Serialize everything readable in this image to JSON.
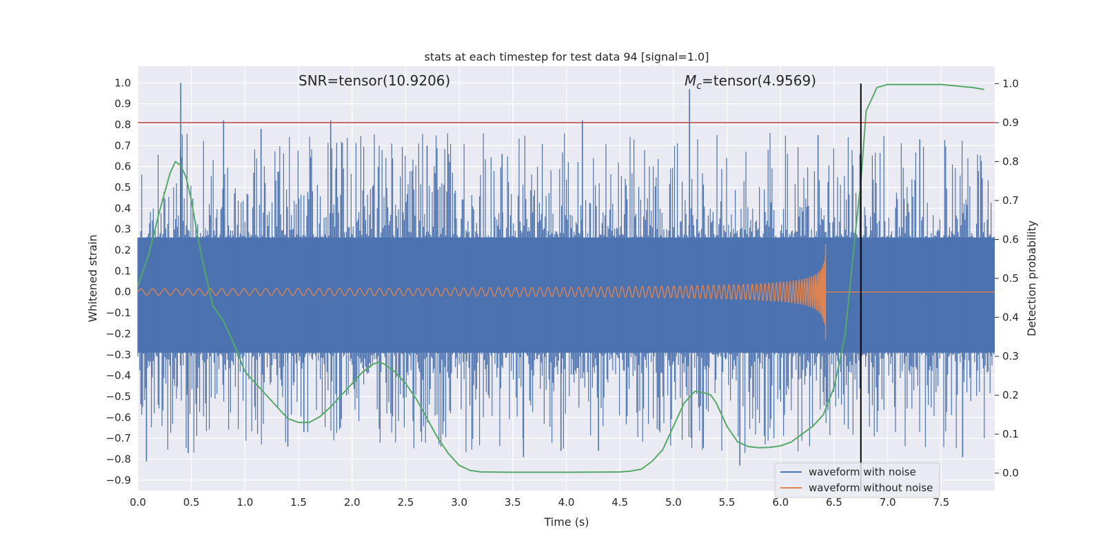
{
  "chart_data": {
    "type": "line",
    "title": "stats at each timestep for test data 94 [signal=1.0]",
    "xlabel": "Time (s)",
    "ylabel": "Whitened strain",
    "y2label": "Detection probability",
    "xlim": [
      0.0,
      8.0
    ],
    "ylim": [
      -0.95,
      1.08
    ],
    "y2lim": [
      -0.045,
      1.045
    ],
    "x_ticks": [
      "0.0",
      "0.5",
      "1.0",
      "1.5",
      "2.0",
      "2.5",
      "3.0",
      "3.5",
      "4.0",
      "4.5",
      "5.0",
      "5.5",
      "6.0",
      "6.5",
      "7.0",
      "7.5"
    ],
    "y_ticks": [
      "1.0",
      "0.9",
      "0.8",
      "0.7",
      "0.6",
      "0.5",
      "0.4",
      "0.3",
      "0.2",
      "0.1",
      "0.0",
      "−0.1",
      "−0.2",
      "−0.3",
      "−0.4",
      "−0.5",
      "−0.6",
      "−0.7",
      "−0.8",
      "−0.9"
    ],
    "y2_ticks": [
      "1.0",
      "0.9",
      "0.8",
      "0.7",
      "0.6",
      "0.5",
      "0.4",
      "0.3",
      "0.2",
      "0.1",
      "0.0"
    ],
    "grid": true,
    "legend_position": "lower-right",
    "annotations": {
      "snr": "SNR=tensor(10.9206)",
      "mc_symbol": "M",
      "mc_subscript": "c",
      "mc_value": "=tensor(4.9569)"
    },
    "threshold_y2": 0.9,
    "event_time": 6.75,
    "series": [
      {
        "name": "waveform with noise",
        "color": "#4c72b0",
        "axis": "left",
        "envelope": [
          0.26,
          -0.29
        ],
        "peaks": [
          [
            0.4,
            1.0
          ],
          [
            0.8,
            0.82
          ],
          [
            1.15,
            0.78
          ],
          [
            1.8,
            0.82
          ],
          [
            2.7,
            0.7
          ],
          [
            3.4,
            0.66
          ],
          [
            4.15,
            0.82
          ],
          [
            5.15,
            0.97
          ],
          [
            6.35,
            0.75
          ],
          [
            7.3,
            0.73
          ],
          [
            0.08,
            -0.81
          ],
          [
            0.47,
            -0.77
          ],
          [
            1.4,
            -0.74
          ],
          [
            1.55,
            -0.67
          ],
          [
            3.6,
            -0.79
          ],
          [
            3.95,
            -0.76
          ],
          [
            4.3,
            -0.76
          ],
          [
            5.62,
            -0.83
          ],
          [
            7.7,
            -0.79
          ]
        ]
      },
      {
        "name": "waveform without noise",
        "color": "#dd8452",
        "axis": "left",
        "amplitude_start": 0.015,
        "amplitude_at_merger": 0.23,
        "merger_time": 6.42
      },
      {
        "name": "detection probability",
        "color": "#55a868",
        "axis": "right",
        "x": [
          0.0,
          0.1,
          0.2,
          0.3,
          0.35,
          0.4,
          0.45,
          0.5,
          0.55,
          0.6,
          0.7,
          0.8,
          0.9,
          1.0,
          1.2,
          1.4,
          1.5,
          1.6,
          1.7,
          1.8,
          1.9,
          2.0,
          2.1,
          2.2,
          2.25,
          2.3,
          2.4,
          2.5,
          2.6,
          2.7,
          2.8,
          2.9,
          3.0,
          3.1,
          3.2,
          3.5,
          4.0,
          4.5,
          4.6,
          4.7,
          4.8,
          4.9,
          5.0,
          5.1,
          5.2,
          5.3,
          5.35,
          5.4,
          5.5,
          5.6,
          5.7,
          5.8,
          5.9,
          6.0,
          6.1,
          6.2,
          6.3,
          6.4,
          6.5,
          6.6,
          6.7,
          6.75,
          6.8,
          6.9,
          7.0,
          7.5,
          7.8,
          7.9
        ],
        "y": [
          0.48,
          0.56,
          0.67,
          0.77,
          0.8,
          0.79,
          0.76,
          0.7,
          0.62,
          0.55,
          0.43,
          0.39,
          0.33,
          0.26,
          0.2,
          0.14,
          0.13,
          0.13,
          0.145,
          0.17,
          0.2,
          0.23,
          0.26,
          0.28,
          0.285,
          0.28,
          0.26,
          0.23,
          0.19,
          0.14,
          0.09,
          0.05,
          0.02,
          0.007,
          0.003,
          0.002,
          0.002,
          0.003,
          0.005,
          0.01,
          0.03,
          0.06,
          0.12,
          0.18,
          0.21,
          0.205,
          0.2,
          0.18,
          0.12,
          0.08,
          0.068,
          0.065,
          0.066,
          0.07,
          0.08,
          0.1,
          0.12,
          0.15,
          0.22,
          0.35,
          0.62,
          0.75,
          0.93,
          0.99,
          0.998,
          0.998,
          0.99,
          0.985
        ]
      }
    ]
  }
}
